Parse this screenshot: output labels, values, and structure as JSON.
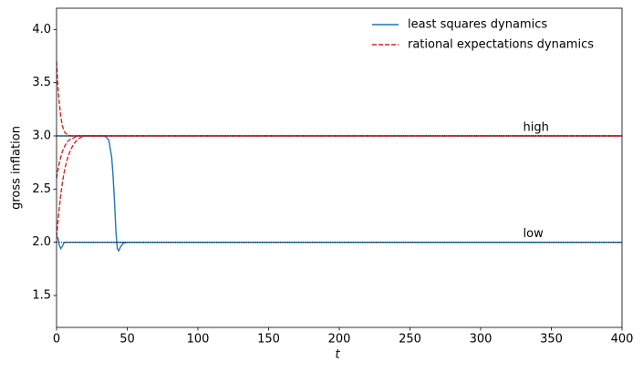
{
  "chart_data": {
    "type": "line",
    "xlabel": "t",
    "ylabel": "gross inflation",
    "xlim": [
      0,
      400
    ],
    "ylim": [
      1.2,
      4.2
    ],
    "xticks": [
      0,
      50,
      100,
      150,
      200,
      250,
      300,
      350,
      400
    ],
    "yticks": [
      1.5,
      {
        "value": 2,
        "label": "2.0"
      },
      2.5,
      {
        "value": 3,
        "label": "3.0"
      },
      3.5,
      {
        "value": 4,
        "label": "4.0"
      }
    ],
    "legend": "upper right",
    "x": [
      0,
      1,
      2,
      3,
      4,
      5,
      6,
      8,
      10,
      12,
      15,
      18,
      20,
      25,
      30,
      33,
      35,
      37,
      39,
      40,
      41,
      42,
      43,
      44,
      45,
      47,
      50,
      55,
      60,
      100,
      200,
      300,
      400
    ],
    "series": [
      {
        "name": "least squares dynamics",
        "color": "#1f77b4",
        "dashed": false,
        "lines": [
          {
            "values": [
              2.05,
              2.04,
              1.97,
              1.94,
              1.96,
              1.99,
              2.0,
              2.0,
              2.0,
              2.0,
              2.0,
              2.0,
              2.0,
              2.0,
              2.0,
              2.0,
              2.0,
              2.0,
              2.0,
              2.0,
              2.0,
              2.0,
              2.0,
              2.0,
              2.0,
              2.0,
              2.0,
              2.0,
              2.0,
              2.0,
              2.0,
              2.0,
              2.0
            ]
          },
          {
            "values": [
              3.0,
              3.0,
              3.0,
              3.0,
              3.0,
              3.0,
              3.0,
              3.0,
              3.0,
              3.0,
              3.0,
              3.0,
              3.0,
              3.0,
              3.0,
              3.0,
              2.99,
              2.96,
              2.8,
              2.62,
              2.38,
              2.1,
              1.94,
              1.92,
              1.95,
              1.99,
              2.0,
              2.0,
              2.0,
              2.0,
              2.0,
              2.0,
              2.0
            ]
          }
        ]
      },
      {
        "name": "rational expectations dynamics",
        "color": "#d62728",
        "dashed": true,
        "lines": [
          {
            "values": [
              3.7,
              3.45,
              3.3,
              3.18,
              3.1,
              3.06,
              3.03,
              3.01,
              3.0,
              3.0,
              3.0,
              3.0,
              3.0,
              3.0,
              3.0,
              3.0,
              3.0,
              3.0,
              3.0,
              3.0,
              3.0,
              3.0,
              3.0,
              3.0,
              3.0,
              3.0,
              3.0,
              3.0,
              3.0,
              3.0,
              3.0,
              3.0,
              3.0
            ]
          },
          {
            "values": [
              2.6,
              2.68,
              2.75,
              2.8,
              2.85,
              2.88,
              2.91,
              2.95,
              2.97,
              2.98,
              3.0,
              3.0,
              3.0,
              3.0,
              3.0,
              3.0,
              3.0,
              3.0,
              3.0,
              3.0,
              3.0,
              3.0,
              3.0,
              3.0,
              3.0,
              3.0,
              3.0,
              3.0,
              3.0,
              3.0,
              3.0,
              3.0,
              3.0
            ]
          },
          {
            "values": [
              2.05,
              2.2,
              2.33,
              2.45,
              2.55,
              2.63,
              2.7,
              2.8,
              2.87,
              2.92,
              2.97,
              2.99,
              3.0,
              3.0,
              3.0,
              3.0,
              3.0,
              3.0,
              3.0,
              3.0,
              3.0,
              3.0,
              3.0,
              3.0,
              3.0,
              3.0,
              3.0,
              3.0,
              3.0,
              3.0,
              3.0,
              3.0,
              3.0
            ]
          }
        ]
      }
    ],
    "reference_lines": [
      {
        "value": 3,
        "label": "high",
        "color": "#000000"
      },
      {
        "value": 2,
        "label": "low",
        "color": "#000000"
      }
    ]
  }
}
